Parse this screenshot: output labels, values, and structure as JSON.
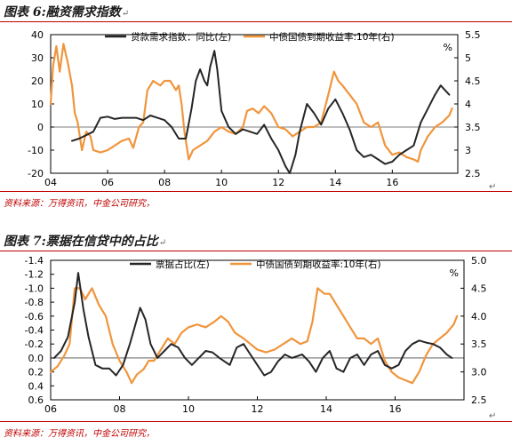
{
  "figures": [
    {
      "title": "图表 6:融资需求指数",
      "source": "资料来源：万得资讯，中金公司研究，"
    },
    {
      "title": "图表 7:票据在信贷中的占比",
      "source": "资料来源：万得资讯，中金公司研究，"
    }
  ],
  "chart_data": [
    {
      "type": "line",
      "title": "图表 6:融资需求指数",
      "x_ticks": [
        "04",
        "06",
        "08",
        "10",
        "12",
        "14",
        "16"
      ],
      "left_axis": {
        "ticks": [
          "40",
          "30",
          "20",
          "10",
          "0",
          "-10",
          "-20"
        ],
        "range": [
          -20,
          40
        ]
      },
      "right_axis": {
        "ticks": [
          "5.5",
          "5",
          "4.5",
          "4",
          "3.5",
          "3",
          "2.5"
        ],
        "range": [
          2.5,
          5.5
        ],
        "unit": "%"
      },
      "series": [
        {
          "name": "贷款需求指数：同比(左)",
          "axis": "left",
          "color": "#262626",
          "points": [
            [
              2004.75,
              -6
            ],
            [
              2005.0,
              -5
            ],
            [
              2005.5,
              -2
            ],
            [
              2005.75,
              4
            ],
            [
              2006.0,
              4.5
            ],
            [
              2006.25,
              3.5
            ],
            [
              2006.5,
              4
            ],
            [
              2007.0,
              4
            ],
            [
              2007.25,
              3
            ],
            [
              2007.5,
              5
            ],
            [
              2007.75,
              4
            ],
            [
              2008.0,
              3
            ],
            [
              2008.25,
              0
            ],
            [
              2008.5,
              -5
            ],
            [
              2008.75,
              -5
            ],
            [
              2008.95,
              8
            ],
            [
              2009.1,
              20
            ],
            [
              2009.25,
              25
            ],
            [
              2009.4,
              20
            ],
            [
              2009.5,
              18
            ],
            [
              2009.6,
              26
            ],
            [
              2009.75,
              33
            ],
            [
              2009.85,
              25
            ],
            [
              2010.0,
              7
            ],
            [
              2010.25,
              0
            ],
            [
              2010.5,
              -3
            ],
            [
              2010.75,
              -1
            ],
            [
              2011.0,
              -2
            ],
            [
              2011.25,
              -3
            ],
            [
              2011.5,
              1
            ],
            [
              2011.75,
              -5
            ],
            [
              2012.0,
              -10
            ],
            [
              2012.25,
              -17
            ],
            [
              2012.4,
              -20
            ],
            [
              2012.6,
              -12
            ],
            [
              2012.75,
              -2
            ],
            [
              2013.0,
              10
            ],
            [
              2013.25,
              6
            ],
            [
              2013.5,
              1
            ],
            [
              2013.75,
              8
            ],
            [
              2014.0,
              12
            ],
            [
              2014.25,
              6
            ],
            [
              2014.5,
              -1
            ],
            [
              2014.75,
              -10
            ],
            [
              2015.0,
              -13
            ],
            [
              2015.25,
              -12
            ],
            [
              2015.5,
              -14
            ],
            [
              2015.75,
              -16
            ],
            [
              2016.0,
              -15
            ],
            [
              2016.25,
              -12
            ],
            [
              2016.5,
              -10
            ],
            [
              2016.75,
              -8
            ],
            [
              2017.0,
              2
            ],
            [
              2017.25,
              8
            ],
            [
              2017.5,
              14
            ],
            [
              2017.7,
              18
            ],
            [
              2017.85,
              16
            ],
            [
              2018.0,
              14
            ]
          ]
        },
        {
          "name": "中债国债到期收益率:10年(右)",
          "axis": "right",
          "color": "#f0953c",
          "points": [
            [
              2004.0,
              4.0
            ],
            [
              2004.08,
              4.8
            ],
            [
              2004.2,
              5.25
            ],
            [
              2004.32,
              4.7
            ],
            [
              2004.45,
              5.3
            ],
            [
              2004.6,
              4.9
            ],
            [
              2004.75,
              4.4
            ],
            [
              2004.85,
              3.8
            ],
            [
              2004.95,
              3.6
            ],
            [
              2005.1,
              3.0
            ],
            [
              2005.25,
              3.4
            ],
            [
              2005.4,
              3.3
            ],
            [
              2005.5,
              3.0
            ],
            [
              2005.75,
              2.95
            ],
            [
              2006.0,
              3.0
            ],
            [
              2006.25,
              3.1
            ],
            [
              2006.5,
              3.2
            ],
            [
              2006.75,
              3.25
            ],
            [
              2006.9,
              3.05
            ],
            [
              2007.1,
              3.5
            ],
            [
              2007.25,
              3.6
            ],
            [
              2007.4,
              4.3
            ],
            [
              2007.6,
              4.5
            ],
            [
              2007.85,
              4.4
            ],
            [
              2008.0,
              4.5
            ],
            [
              2008.2,
              4.5
            ],
            [
              2008.4,
              4.3
            ],
            [
              2008.5,
              4.4
            ],
            [
              2008.6,
              4.0
            ],
            [
              2008.7,
              3.4
            ],
            [
              2008.85,
              2.8
            ],
            [
              2009.0,
              3.0
            ],
            [
              2009.25,
              3.1
            ],
            [
              2009.5,
              3.2
            ],
            [
              2009.75,
              3.4
            ],
            [
              2010.0,
              3.5
            ],
            [
              2010.25,
              3.4
            ],
            [
              2010.5,
              3.35
            ],
            [
              2010.75,
              3.5
            ],
            [
              2010.9,
              3.85
            ],
            [
              2011.1,
              3.9
            ],
            [
              2011.3,
              3.8
            ],
            [
              2011.5,
              3.95
            ],
            [
              2011.75,
              3.8
            ],
            [
              2012.0,
              3.5
            ],
            [
              2012.25,
              3.45
            ],
            [
              2012.5,
              3.3
            ],
            [
              2012.75,
              3.4
            ],
            [
              2013.0,
              3.5
            ],
            [
              2013.25,
              3.5
            ],
            [
              2013.5,
              3.6
            ],
            [
              2013.75,
              4.2
            ],
            [
              2013.95,
              4.7
            ],
            [
              2014.1,
              4.5
            ],
            [
              2014.25,
              4.4
            ],
            [
              2014.5,
              4.2
            ],
            [
              2014.75,
              4.0
            ],
            [
              2015.0,
              3.6
            ],
            [
              2015.25,
              3.5
            ],
            [
              2015.5,
              3.6
            ],
            [
              2015.75,
              3.1
            ],
            [
              2016.0,
              2.9
            ],
            [
              2016.25,
              2.95
            ],
            [
              2016.5,
              2.85
            ],
            [
              2016.75,
              2.8
            ],
            [
              2016.9,
              2.75
            ],
            [
              2017.0,
              3.0
            ],
            [
              2017.25,
              3.3
            ],
            [
              2017.5,
              3.5
            ],
            [
              2017.75,
              3.6
            ],
            [
              2018.0,
              3.75
            ],
            [
              2018.1,
              3.9
            ]
          ]
        }
      ]
    },
    {
      "type": "line",
      "title": "图表 7:票据在信贷中的占比",
      "x_ticks": [
        "06",
        "08",
        "10",
        "12",
        "14",
        "16"
      ],
      "left_axis": {
        "ticks": [
          "-1.4",
          "-1.2",
          "-1.0",
          "-0.8",
          "-0.6",
          "-0.4",
          "-0.2",
          "0.0",
          "0.2",
          "0.4",
          "0.6"
        ],
        "range": [
          -1.4,
          0.6
        ],
        "inverted": true
      },
      "right_axis": {
        "ticks": [
          "5.0",
          "4.5",
          "4.0",
          "3.5",
          "3.0",
          "2.5"
        ],
        "range": [
          2.5,
          5.0
        ],
        "unit": "%"
      },
      "series": [
        {
          "name": "票据占比(左)",
          "axis": "left",
          "color": "#262626",
          "points": [
            [
              2006.1,
              0.0
            ],
            [
              2006.3,
              -0.1
            ],
            [
              2006.5,
              -0.3
            ],
            [
              2006.7,
              -0.8
            ],
            [
              2006.8,
              -1.22
            ],
            [
              2006.95,
              -0.7
            ],
            [
              2007.1,
              -0.3
            ],
            [
              2007.3,
              0.1
            ],
            [
              2007.5,
              0.15
            ],
            [
              2007.7,
              0.15
            ],
            [
              2007.9,
              0.25
            ],
            [
              2008.1,
              0.1
            ],
            [
              2008.3,
              -0.2
            ],
            [
              2008.5,
              -0.55
            ],
            [
              2008.6,
              -0.72
            ],
            [
              2008.75,
              -0.55
            ],
            [
              2008.9,
              -0.2
            ],
            [
              2009.1,
              0.0
            ],
            [
              2009.3,
              -0.1
            ],
            [
              2009.5,
              -0.2
            ],
            [
              2009.7,
              -0.15
            ],
            [
              2009.9,
              0.0
            ],
            [
              2010.1,
              0.1
            ],
            [
              2010.3,
              0.0
            ],
            [
              2010.5,
              -0.1
            ],
            [
              2010.7,
              -0.08
            ],
            [
              2010.9,
              0.0
            ],
            [
              2011.2,
              0.1
            ],
            [
              2011.4,
              -0.15
            ],
            [
              2011.6,
              -0.2
            ],
            [
              2011.8,
              -0.05
            ],
            [
              2012.0,
              0.1
            ],
            [
              2012.2,
              0.25
            ],
            [
              2012.4,
              0.2
            ],
            [
              2012.6,
              0.05
            ],
            [
              2012.8,
              -0.05
            ],
            [
              2013.0,
              0.0
            ],
            [
              2013.3,
              -0.05
            ],
            [
              2013.5,
              0.05
            ],
            [
              2013.7,
              0.2
            ],
            [
              2013.9,
              0.0
            ],
            [
              2014.1,
              -0.1
            ],
            [
              2014.3,
              0.15
            ],
            [
              2014.5,
              0.2
            ],
            [
              2014.7,
              0.0
            ],
            [
              2014.9,
              -0.05
            ],
            [
              2015.1,
              0.1
            ],
            [
              2015.3,
              -0.05
            ],
            [
              2015.5,
              -0.1
            ],
            [
              2015.7,
              0.1
            ],
            [
              2015.9,
              0.15
            ],
            [
              2016.1,
              0.1
            ],
            [
              2016.3,
              -0.1
            ],
            [
              2016.5,
              -0.2
            ],
            [
              2016.7,
              -0.25
            ],
            [
              2016.9,
              -0.22
            ],
            [
              2017.1,
              -0.2
            ],
            [
              2017.3,
              -0.15
            ],
            [
              2017.5,
              -0.05
            ],
            [
              2017.65,
              0.0
            ]
          ]
        },
        {
          "name": "中债国债到期收益率:10年(右)",
          "axis": "right",
          "color": "#f0953c",
          "points": [
            [
              2006.0,
              3.0
            ],
            [
              2006.2,
              3.1
            ],
            [
              2006.4,
              3.3
            ],
            [
              2006.55,
              3.5
            ],
            [
              2006.7,
              4.5
            ],
            [
              2006.85,
              4.5
            ],
            [
              2007.0,
              4.3
            ],
            [
              2007.2,
              4.5
            ],
            [
              2007.4,
              4.2
            ],
            [
              2007.6,
              4.0
            ],
            [
              2007.8,
              3.5
            ],
            [
              2008.0,
              3.2
            ],
            [
              2008.2,
              3.0
            ],
            [
              2008.35,
              2.8
            ],
            [
              2008.5,
              2.95
            ],
            [
              2008.7,
              3.05
            ],
            [
              2008.85,
              3.2
            ],
            [
              2009.0,
              3.2
            ],
            [
              2009.2,
              3.4
            ],
            [
              2009.4,
              3.6
            ],
            [
              2009.6,
              3.5
            ],
            [
              2009.8,
              3.7
            ],
            [
              2010.0,
              3.8
            ],
            [
              2010.25,
              3.85
            ],
            [
              2010.5,
              3.8
            ],
            [
              2010.75,
              3.9
            ],
            [
              2010.95,
              4.0
            ],
            [
              2011.15,
              3.9
            ],
            [
              2011.35,
              3.7
            ],
            [
              2011.6,
              3.6
            ],
            [
              2011.8,
              3.5
            ],
            [
              2012.0,
              3.4
            ],
            [
              2012.25,
              3.35
            ],
            [
              2012.5,
              3.4
            ],
            [
              2012.75,
              3.5
            ],
            [
              2013.0,
              3.6
            ],
            [
              2013.25,
              3.5
            ],
            [
              2013.45,
              3.55
            ],
            [
              2013.6,
              3.9
            ],
            [
              2013.75,
              4.5
            ],
            [
              2013.95,
              4.4
            ],
            [
              2014.1,
              4.4
            ],
            [
              2014.3,
              4.2
            ],
            [
              2014.5,
              4.0
            ],
            [
              2014.7,
              3.8
            ],
            [
              2014.9,
              3.6
            ],
            [
              2015.1,
              3.6
            ],
            [
              2015.3,
              3.5
            ],
            [
              2015.5,
              3.6
            ],
            [
              2015.7,
              3.2
            ],
            [
              2015.9,
              3.0
            ],
            [
              2016.1,
              2.9
            ],
            [
              2016.3,
              2.85
            ],
            [
              2016.5,
              2.8
            ],
            [
              2016.7,
              3.0
            ],
            [
              2016.9,
              3.3
            ],
            [
              2017.1,
              3.5
            ],
            [
              2017.3,
              3.6
            ],
            [
              2017.5,
              3.7
            ],
            [
              2017.7,
              3.85
            ],
            [
              2017.8,
              4.0
            ]
          ]
        }
      ]
    }
  ]
}
